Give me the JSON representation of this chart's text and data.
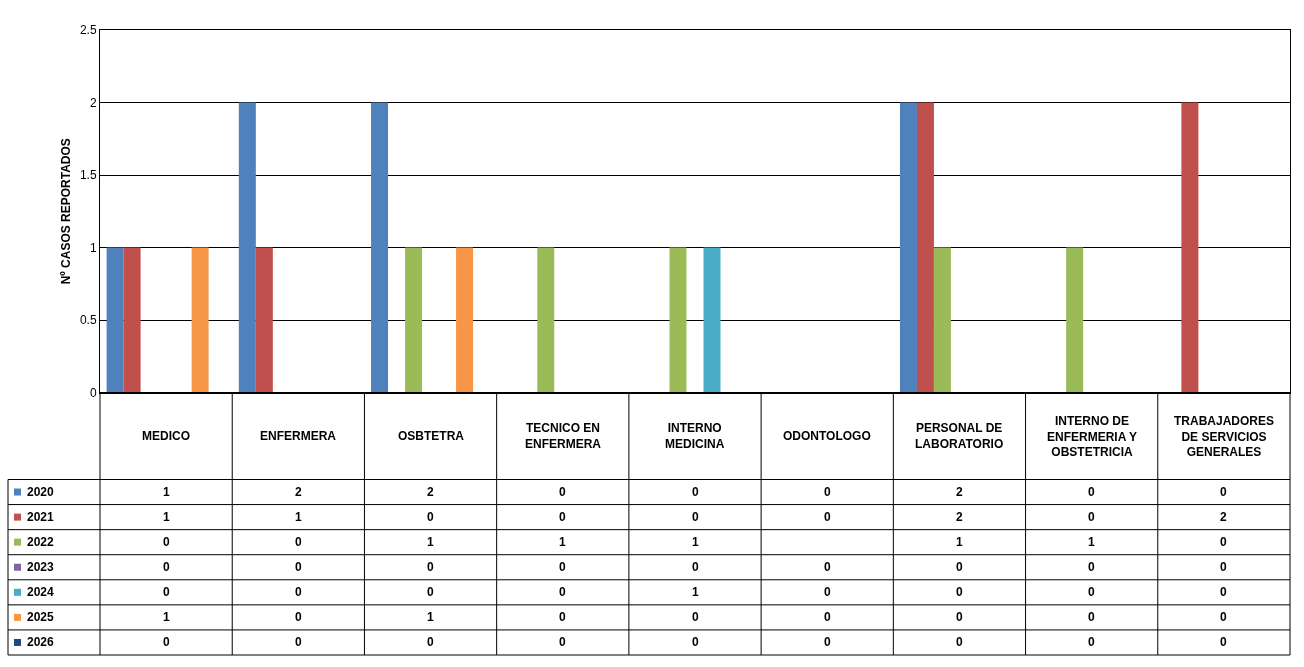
{
  "chart_data": {
    "type": "bar",
    "ylabel": "Nº CASOS REPORTADOS",
    "categories": [
      "MEDICO",
      "ENFERMERA",
      "OSBTETRA",
      "TECNICO EN ENFERMERA",
      "INTERNO MEDICINA",
      "ODONTOLOGO",
      "PERSONAL DE LABORATORIO",
      "INTERNO DE ENFERMERIA Y OBSTETRICIA",
      "TRABAJADORES DE SERVICIOS GENERALES"
    ],
    "series": [
      {
        "name": "2020",
        "color": "#4f81bd",
        "values": [
          1,
          2,
          2,
          0,
          0,
          0,
          2,
          0,
          0
        ]
      },
      {
        "name": "2021",
        "color": "#c0504d",
        "values": [
          1,
          1,
          0,
          0,
          0,
          0,
          2,
          0,
          2
        ]
      },
      {
        "name": "2022",
        "color": "#9bbb59",
        "values": [
          0,
          0,
          1,
          1,
          1,
          null,
          1,
          1,
          0
        ]
      },
      {
        "name": "2023",
        "color": "#8064a2",
        "values": [
          0,
          0,
          0,
          0,
          0,
          0,
          0,
          0,
          0
        ]
      },
      {
        "name": "2024",
        "color": "#4bacc6",
        "values": [
          0,
          0,
          0,
          0,
          1,
          0,
          0,
          0,
          0
        ]
      },
      {
        "name": "2025",
        "color": "#f79646",
        "values": [
          1,
          0,
          1,
          0,
          0,
          0,
          0,
          0,
          0
        ]
      },
      {
        "name": "2026",
        "color": "#1f497d",
        "values": [
          0,
          0,
          0,
          0,
          0,
          0,
          0,
          0,
          0
        ]
      }
    ],
    "ylim": [
      0,
      2.5
    ],
    "yticks": [
      0,
      0.5,
      1,
      1.5,
      2,
      2.5
    ],
    "grid": "y",
    "legend": "bottom left",
    "data_labels": true
  }
}
